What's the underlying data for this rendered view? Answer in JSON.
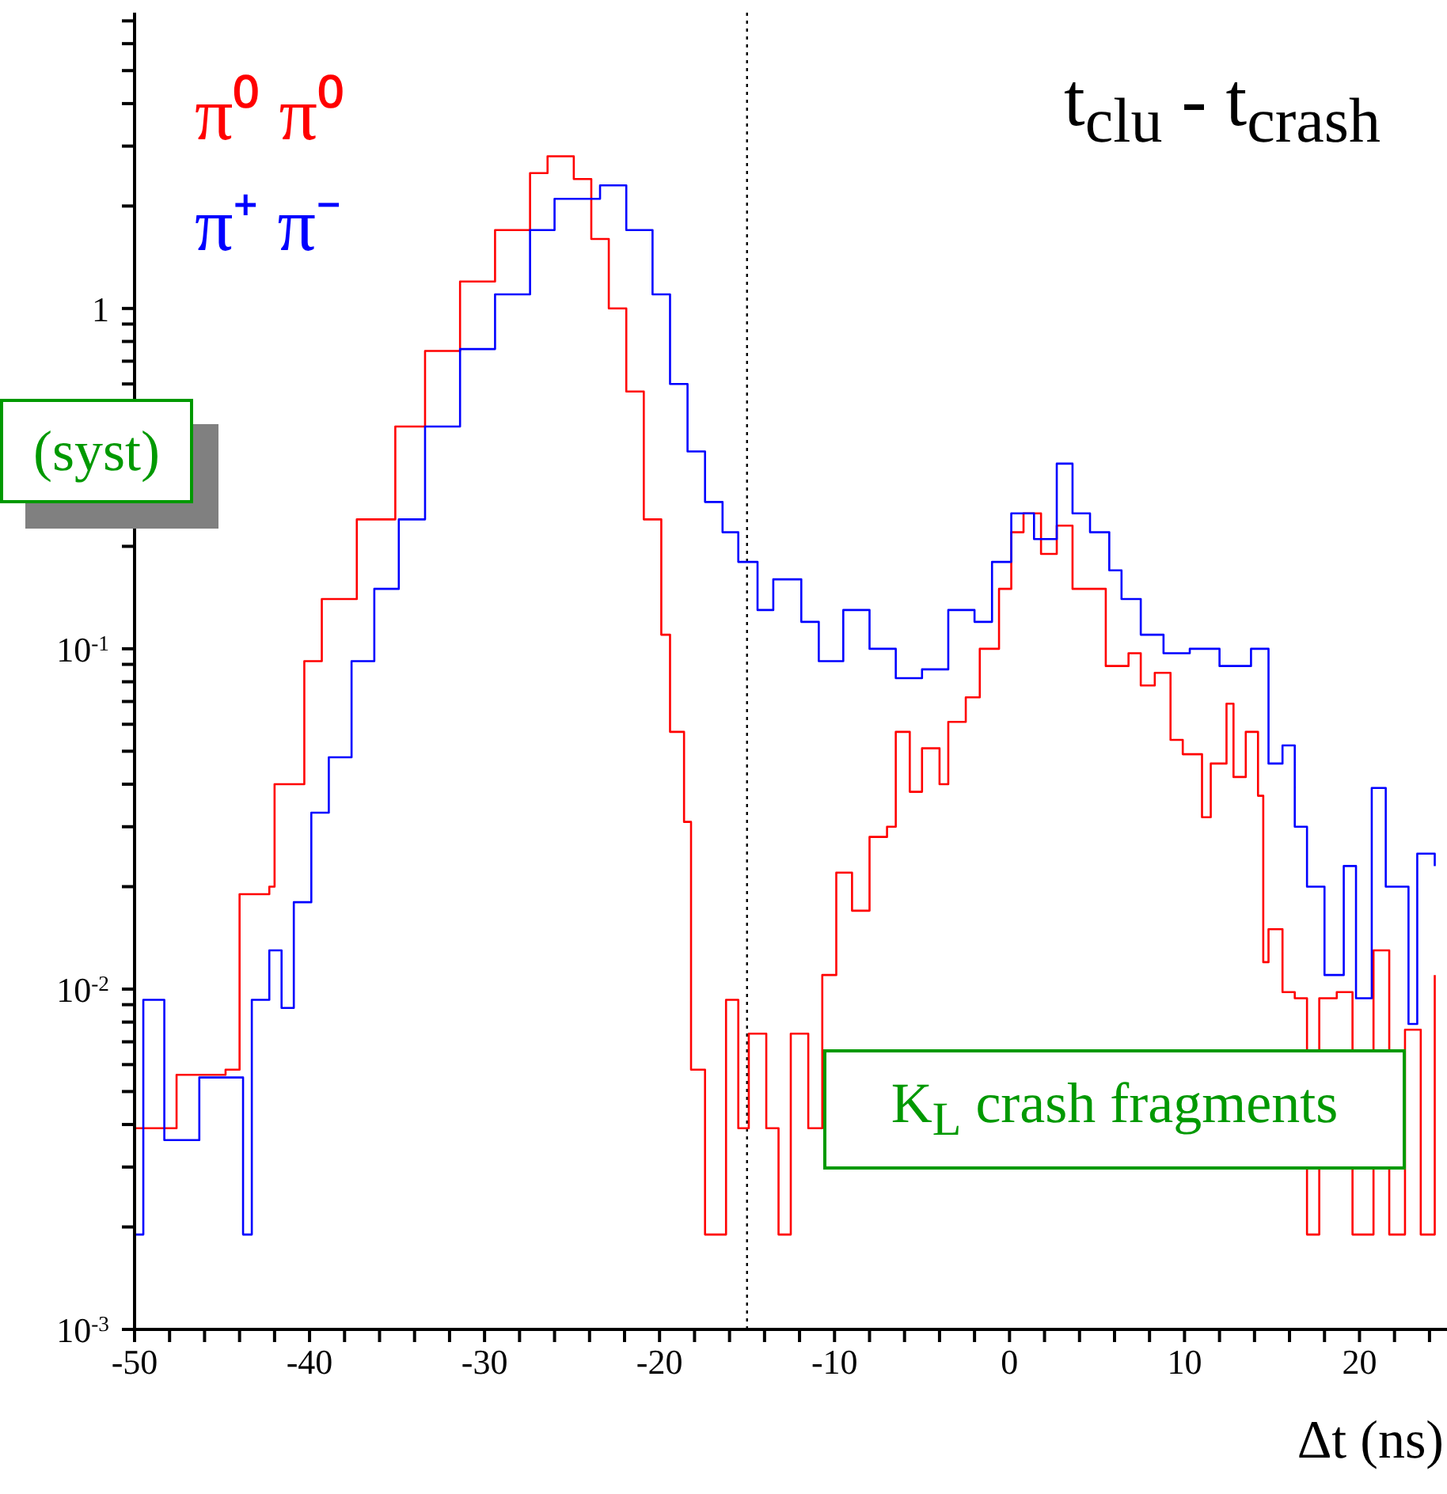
{
  "chart_data": {
    "type": "step",
    "title": "t$_{clu}$ - t$_{crash}$",
    "xlabel": "Δt (ns)",
    "legend": "top left",
    "log": "y",
    "xlim": [
      -50,
      25
    ],
    "ylim": [
      0.001,
      7.4
    ],
    "xticks": [
      -50,
      {
        "value": -48,
        "label": null
      },
      {
        "value": -46,
        "label": null
      },
      {
        "value": -44,
        "label": null
      },
      {
        "value": -42,
        "label": null
      },
      -40,
      {
        "value": -38,
        "label": null
      },
      {
        "value": -36,
        "label": null
      },
      {
        "value": -34,
        "label": null
      },
      {
        "value": -32,
        "label": null
      },
      -30,
      {
        "value": -28,
        "label": null
      },
      {
        "value": -26,
        "label": null
      },
      {
        "value": -24,
        "label": null
      },
      {
        "value": -22,
        "label": null
      },
      -20,
      {
        "value": -18,
        "label": null
      },
      {
        "value": -16,
        "label": null
      },
      {
        "value": -14,
        "label": null
      },
      {
        "value": -12,
        "label": null
      },
      -10,
      {
        "value": -8,
        "label": null
      },
      {
        "value": -6,
        "label": null
      },
      {
        "value": -4,
        "label": null
      },
      {
        "value": -2,
        "label": null
      },
      0,
      {
        "value": 2,
        "label": null
      },
      {
        "value": 4,
        "label": null
      },
      {
        "value": 6,
        "label": null
      },
      {
        "value": 8,
        "label": null
      },
      10,
      {
        "value": 12,
        "label": null
      },
      {
        "value": 14,
        "label": null
      },
      {
        "value": 16,
        "label": null
      },
      {
        "value": 18,
        "label": null
      },
      20,
      {
        "value": 22,
        "label": null
      },
      {
        "value": 24,
        "label": null
      }
    ],
    "yticks": [
      {
        "value": 0.001,
        "label": "10$^{-3}$"
      },
      {
        "value": 0.002,
        "label": null
      },
      {
        "value": 0.003,
        "label": null
      },
      {
        "value": 0.004,
        "label": null
      },
      {
        "value": 0.005,
        "label": null
      },
      {
        "value": 0.006,
        "label": null
      },
      {
        "value": 0.007,
        "label": null
      },
      {
        "value": 0.008,
        "label": null
      },
      {
        "value": 0.009,
        "label": null
      },
      {
        "value": 0.01,
        "label": "10$^{-2}$"
      },
      {
        "value": 0.02,
        "label": null
      },
      {
        "value": 0.03,
        "label": null
      },
      {
        "value": 0.04,
        "label": null
      },
      {
        "value": 0.05,
        "label": null
      },
      {
        "value": 0.06,
        "label": null
      },
      {
        "value": 0.07,
        "label": null
      },
      {
        "value": 0.08,
        "label": null
      },
      {
        "value": 0.09,
        "label": null
      },
      {
        "value": 0.1,
        "label": "10$^{-1}$"
      },
      {
        "value": 0.2,
        "label": null
      },
      {
        "value": 0.3,
        "label": null
      },
      {
        "value": 0.4,
        "label": null
      },
      {
        "value": 0.5,
        "label": null
      },
      {
        "value": 0.6,
        "label": null
      },
      {
        "value": 0.7,
        "label": null
      },
      {
        "value": 0.8,
        "label": null
      },
      {
        "value": 0.9,
        "label": null
      },
      1,
      {
        "value": 2,
        "label": null
      },
      {
        "value": 3,
        "label": null
      },
      {
        "value": 4,
        "label": null
      },
      {
        "value": 5,
        "label": null
      },
      {
        "value": 6,
        "label": null
      },
      {
        "value": 7,
        "label": null
      }
    ],
    "ref_lines": [
      {
        "axis": "x",
        "value": -15,
        "line_style": "dotted",
        "color": "#000000"
      }
    ],
    "annotations": [
      "K$_{L}$ crash fragments",
      "(syst)"
    ],
    "series": [
      {
        "name": "π⁰ π⁰",
        "color": "#ff0000",
        "x": [
          -50,
          -47.6,
          -44.8,
          -44,
          -42.3,
          -42,
          -40.3,
          -39.3,
          -37.3,
          -35.1,
          -33.4,
          -31.4,
          -29.4,
          -27.4,
          -26.4,
          -24.9,
          -23.9,
          -22.9,
          -21.9,
          -20.9,
          -19.9,
          -19.4,
          -18.6,
          -18.2,
          -17.4,
          -16.2,
          -15.5,
          -14.9,
          -13.9,
          -13.2,
          -12.5,
          -11.5,
          -10.7,
          -9.9,
          -9,
          -8,
          -7,
          -6.5,
          -5.7,
          -5,
          -4,
          -3.5,
          -2.5,
          -1.7,
          -0.6,
          0.1,
          0.8,
          1.8,
          2.7,
          3.6,
          4.6,
          5.5,
          6.8,
          7.5,
          8.3,
          9.2,
          9.9,
          11,
          11.5,
          12.4,
          12.8,
          13.5,
          14.2,
          14.5,
          14.8,
          15.6,
          16.3,
          17,
          17.7,
          18.7,
          19.6,
          20.8,
          21.7,
          22.6,
          23.5,
          24.3
        ],
        "values": [
          0.0039,
          0.0056,
          0.0058,
          0.019,
          0.02,
          0.04,
          0.092,
          0.14,
          0.24,
          0.45,
          0.75,
          1.2,
          1.7,
          2.5,
          2.8,
          2.4,
          1.6,
          1,
          0.57,
          0.24,
          0.11,
          0.057,
          0.031,
          0.0058,
          0.0019,
          0.0093,
          0.0039,
          0.0074,
          0.0039,
          0.0019,
          0.0074,
          0.0039,
          0.011,
          0.022,
          0.017,
          0.028,
          0.03,
          0.057,
          0.038,
          0.051,
          0.04,
          0.061,
          0.072,
          0.1,
          0.15,
          0.22,
          0.25,
          0.19,
          0.23,
          0.15,
          0.15,
          0.089,
          0.097,
          0.078,
          0.085,
          0.054,
          0.049,
          0.032,
          0.046,
          0.069,
          0.042,
          0.057,
          0.037,
          0.012,
          0.015,
          0.0098,
          0.0094,
          0.0019,
          0.0094,
          0.0098,
          0.0019,
          0.013,
          0.0019,
          0.0076,
          0.0019,
          0.011
        ]
      },
      {
        "name": "π⁺ π⁻",
        "color": "#0000ff",
        "x": [
          -50,
          -49.5,
          -48.3,
          -46.3,
          -44.8,
          -43.8,
          -43.3,
          -42.3,
          -41.6,
          -40.9,
          -39.9,
          -38.9,
          -37.6,
          -36.3,
          -34.9,
          -33.4,
          -31.4,
          -29.4,
          -27.4,
          -26,
          -23.4,
          -21.9,
          -20.4,
          -19.4,
          -18.4,
          -17.4,
          -16.4,
          -15.5,
          -14.4,
          -13.5,
          -11.9,
          -10.9,
          -9.5,
          -8,
          -6.5,
          -5,
          -3.5,
          -2,
          -1,
          0.1,
          1.4,
          2.7,
          3.6,
          4.6,
          5.7,
          6.4,
          7.5,
          8.8,
          10.3,
          12,
          13.8,
          14.8,
          15.6,
          16.3,
          17,
          18,
          19.1,
          19.8,
          20.7,
          21.5,
          22.8,
          23.3,
          24.3
        ],
        "values": [
          0.0019,
          0.0093,
          0.0036,
          0.0055,
          0.0055,
          0.0019,
          0.0093,
          0.013,
          0.0088,
          0.018,
          0.033,
          0.048,
          0.092,
          0.15,
          0.24,
          0.45,
          0.76,
          1.1,
          1.7,
          2.1,
          2.3,
          1.7,
          1.1,
          0.6,
          0.38,
          0.27,
          0.22,
          0.18,
          0.13,
          0.16,
          0.12,
          0.092,
          0.13,
          0.1,
          0.082,
          0.087,
          0.13,
          0.12,
          0.18,
          0.25,
          0.21,
          0.35,
          0.25,
          0.22,
          0.17,
          0.14,
          0.11,
          0.097,
          0.1,
          0.089,
          0.1,
          0.046,
          0.052,
          0.03,
          0.02,
          0.011,
          0.023,
          0.0094,
          0.039,
          0.02,
          0.0079,
          0.025,
          0.023
        ]
      }
    ]
  }
}
